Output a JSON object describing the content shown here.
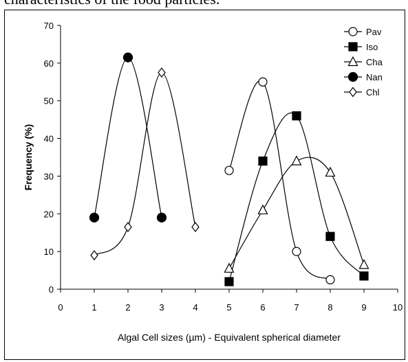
{
  "caption_fragment": "characteristics of the food particles.",
  "chart_data": {
    "type": "line",
    "xlabel": "Algal Cell sizes (µm) - Equivalent spherical diameter",
    "ylabel": "Frequency (%)",
    "xlim": [
      0,
      10
    ],
    "ylim": [
      0,
      70
    ],
    "xticks": [
      0,
      1,
      2,
      3,
      4,
      5,
      6,
      7,
      8,
      9,
      10
    ],
    "yticks": [
      0,
      10,
      20,
      30,
      40,
      50,
      60,
      70
    ],
    "grid": false,
    "legend_position": "top-right",
    "series": [
      {
        "name": "Pav",
        "marker": "circle-open",
        "x": [
          5,
          6,
          7,
          8
        ],
        "y": [
          31.5,
          55,
          10,
          2.5
        ]
      },
      {
        "name": "Iso",
        "marker": "square-filled",
        "x": [
          5,
          6,
          7,
          8,
          9
        ],
        "y": [
          2,
          34,
          46,
          14,
          3.5
        ]
      },
      {
        "name": "Cha",
        "marker": "triangle-open",
        "x": [
          5,
          6,
          7,
          8,
          9
        ],
        "y": [
          5.5,
          21,
          34,
          31,
          6.5
        ]
      },
      {
        "name": "Nan",
        "marker": "circle-filled",
        "x": [
          1,
          2,
          3
        ],
        "y": [
          19,
          61.5,
          19
        ]
      },
      {
        "name": "Chl",
        "marker": "diamond-open",
        "x": [
          1,
          2,
          3,
          4
        ],
        "y": [
          9,
          16.5,
          57.5,
          16.5
        ]
      }
    ]
  }
}
